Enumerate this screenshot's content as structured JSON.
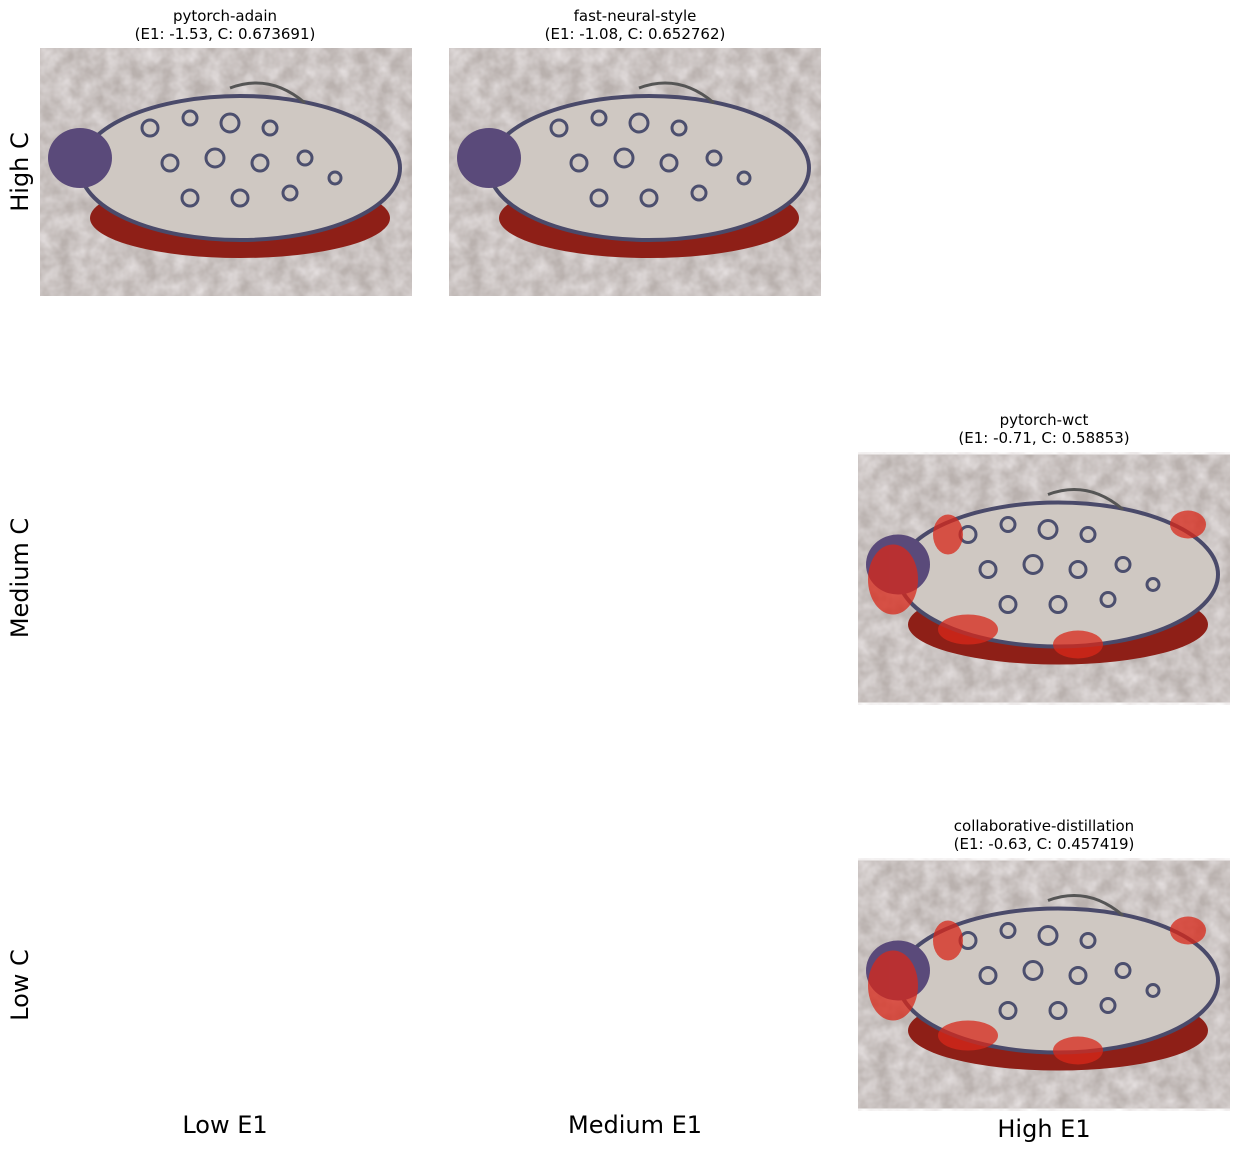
{
  "panels": [
    {
      "name": "pytorch-adain",
      "scores": "(E1: -1.53, C: 0.673691)"
    },
    {
      "name": "fast-neural-style",
      "scores": "(E1: -1.08, C: 0.652762)"
    },
    {
      "name": "pytorch-wct",
      "scores": "(E1: -0.71, C: 0.58853)"
    },
    {
      "name": "collaborative-distillation",
      "scores": "(E1: -0.63, C: 0.457419)"
    }
  ],
  "row_labels": [
    "High C",
    "Medium C",
    "Low C"
  ],
  "column_labels": [
    "Low E1",
    "Medium E1",
    "High E1"
  ]
}
